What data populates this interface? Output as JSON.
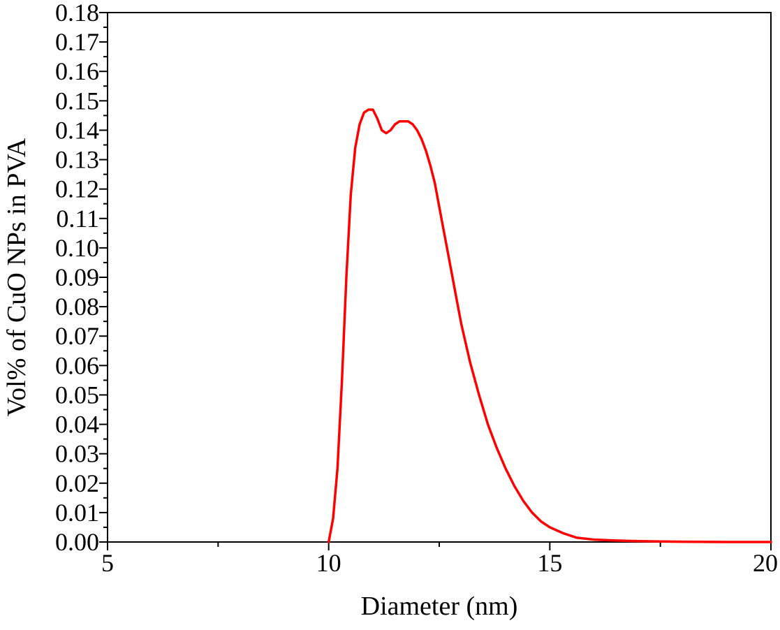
{
  "chart_data": {
    "type": "line",
    "title": "",
    "xlabel": "Diameter (nm)",
    "ylabel": "Vol% of CuO NPs in PVA",
    "xlim": [
      5,
      20
    ],
    "ylim": [
      0,
      0.18
    ],
    "x_ticks": [
      "5",
      "10",
      "15",
      "20"
    ],
    "y_ticks": [
      "0.00",
      "0.01",
      "0.02",
      "0.03",
      "0.04",
      "0.05",
      "0.06",
      "0.07",
      "0.08",
      "0.09",
      "0.10",
      "0.11",
      "0.12",
      "0.13",
      "0.14",
      "0.15",
      "0.16",
      "0.17",
      "0.18"
    ],
    "grid": false,
    "legend": "none",
    "series": [
      {
        "color": "#ff0000",
        "x": [
          10.0,
          10.1,
          10.2,
          10.3,
          10.4,
          10.5,
          10.6,
          10.7,
          10.8,
          10.9,
          11.0,
          11.1,
          11.2,
          11.3,
          11.4,
          11.5,
          11.6,
          11.7,
          11.8,
          11.9,
          12.0,
          12.1,
          12.2,
          12.3,
          12.4,
          12.5,
          12.6,
          12.7,
          12.8,
          12.9,
          13.0,
          13.2,
          13.4,
          13.6,
          13.8,
          14.0,
          14.2,
          14.4,
          14.6,
          14.8,
          15.0,
          15.3,
          15.6,
          16.0,
          16.5,
          17.0,
          17.5,
          18.0,
          19.0,
          20.0
        ],
        "y": [
          0.0,
          0.008,
          0.025,
          0.055,
          0.09,
          0.118,
          0.134,
          0.142,
          0.146,
          0.147,
          0.147,
          0.144,
          0.14,
          0.139,
          0.14,
          0.142,
          0.143,
          0.143,
          0.143,
          0.142,
          0.14,
          0.137,
          0.133,
          0.128,
          0.122,
          0.114,
          0.106,
          0.098,
          0.09,
          0.082,
          0.074,
          0.061,
          0.05,
          0.04,
          0.032,
          0.025,
          0.019,
          0.014,
          0.01,
          0.007,
          0.005,
          0.003,
          0.0015,
          0.0008,
          0.0005,
          0.0003,
          0.0002,
          0.0001,
          0.0,
          0.0
        ]
      }
    ]
  }
}
